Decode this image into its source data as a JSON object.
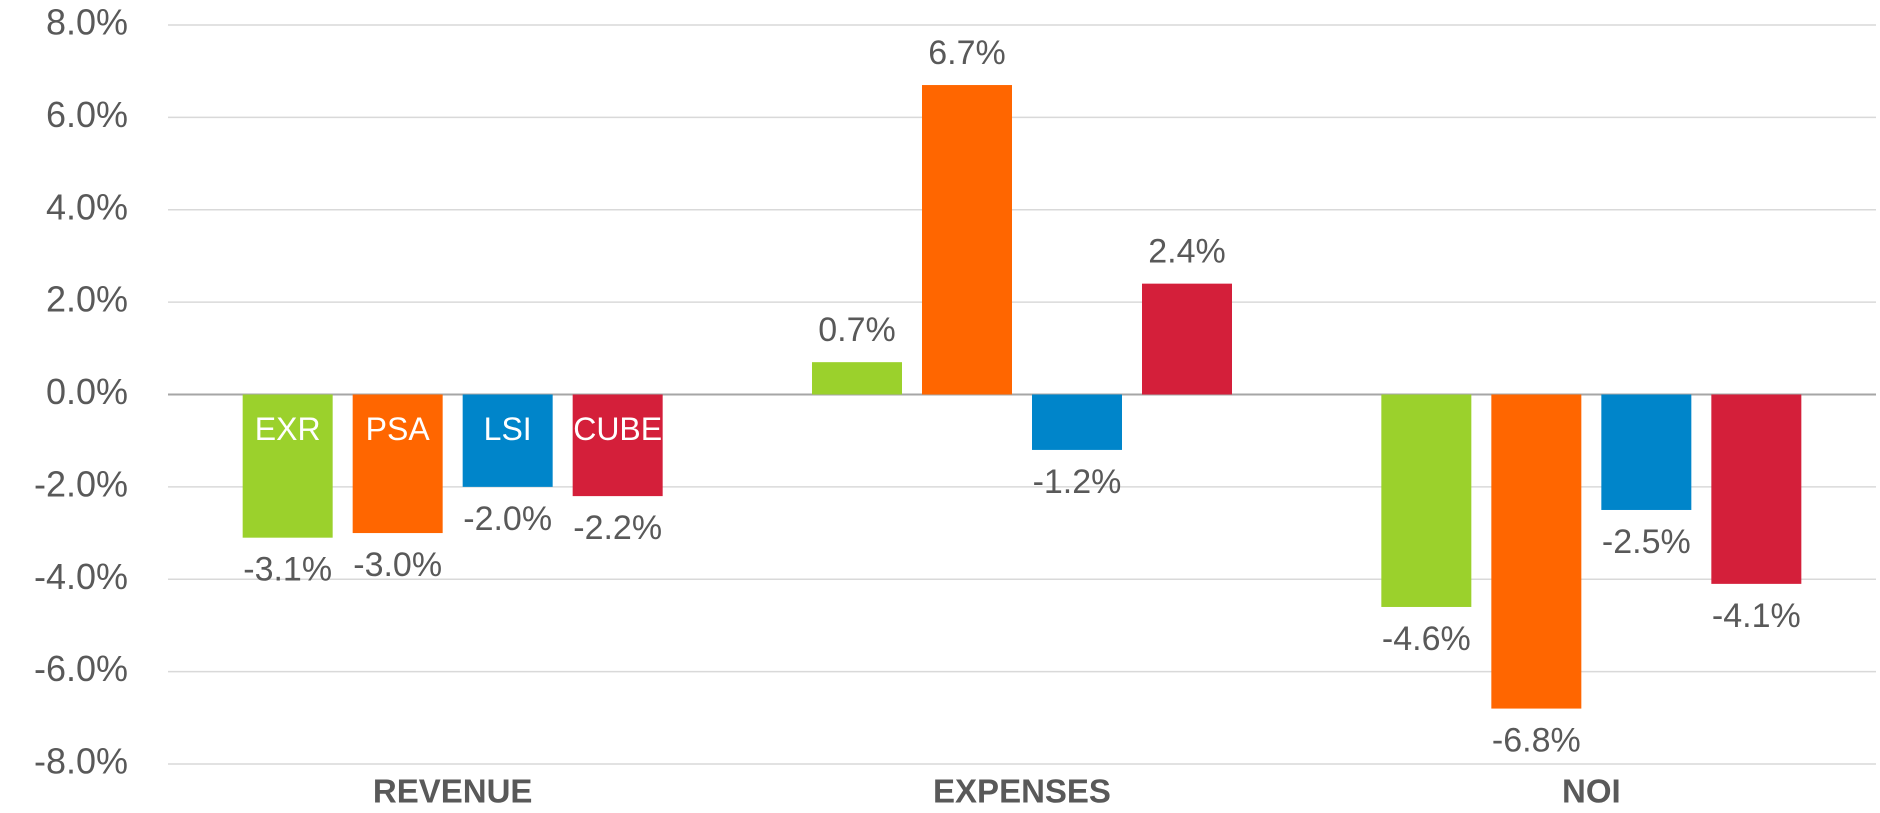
{
  "chart_data": {
    "type": "bar",
    "categories": [
      "REVENUE",
      "EXPENSES",
      "NOI"
    ],
    "series": [
      {
        "name": "EXR",
        "color": "#9bd12c",
        "values": [
          -3.1,
          0.7,
          -4.6
        ],
        "value_labels": [
          "-3.1%",
          "0.7%",
          "-4.6%"
        ]
      },
      {
        "name": "PSA",
        "color": "#ff6600",
        "values": [
          -3.0,
          6.7,
          -6.8
        ],
        "value_labels": [
          "-3.0%",
          "6.7%",
          "-6.8%"
        ]
      },
      {
        "name": "LSI",
        "color": "#0085ca",
        "values": [
          -2.0,
          -1.2,
          -2.5
        ],
        "value_labels": [
          "-2.0%",
          "-1.2%",
          "-2.5%"
        ]
      },
      {
        "name": "CUBE",
        "color": "#d41f3a",
        "values": [
          -2.2,
          2.4,
          -4.1
        ],
        "value_labels": [
          "-2.2%",
          "2.4%",
          "-4.1%"
        ]
      }
    ],
    "ylim": [
      -8,
      8
    ],
    "yticks": [
      {
        "value": -8,
        "label": "-8.0%"
      },
      {
        "value": -6,
        "label": "-6.0%"
      },
      {
        "value": -4,
        "label": "-4.0%"
      },
      {
        "value": -2,
        "label": "-2.0%"
      },
      {
        "value": 0,
        "label": "0.0%"
      },
      {
        "value": 2,
        "label": "2.0%"
      },
      {
        "value": 4,
        "label": "4.0%"
      },
      {
        "value": 6,
        "label": "6.0%"
      },
      {
        "value": 8,
        "label": "8.0%"
      }
    ],
    "grid": true
  }
}
